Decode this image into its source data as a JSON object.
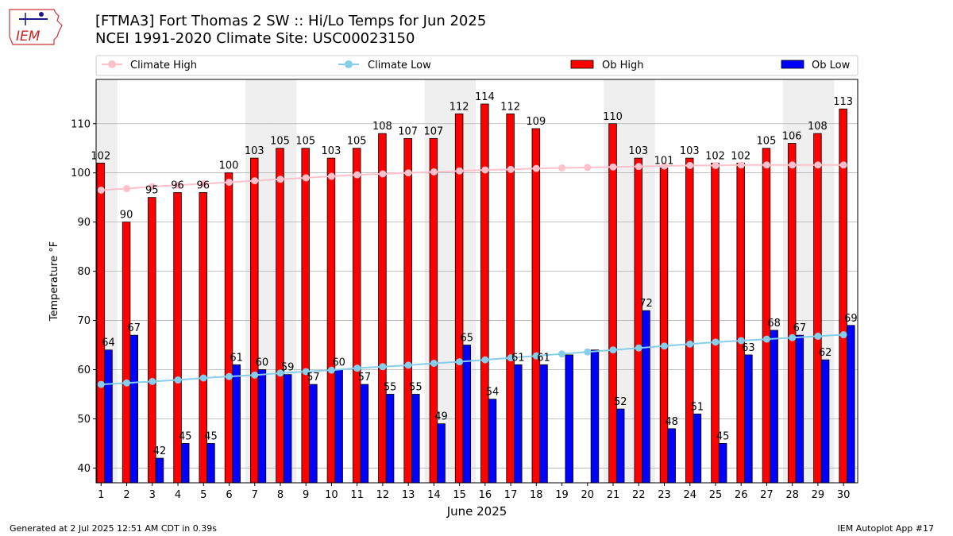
{
  "logo": {
    "text": "IEM"
  },
  "title": {
    "line1": "[FTMA3] Fort Thomas 2 SW :: Hi/Lo Temps for Jun 2025",
    "line2": "NCEI 1991-2020 Climate Site: USC00023150"
  },
  "footer": {
    "generated": "Generated at 2 Jul 2025 12:51 AM CDT in 0.39s",
    "app": "IEM Autoplot App #17"
  },
  "colors": {
    "ob_high": "#ff0000",
    "ob_low": "#0000ff",
    "climate_high": "#ffc0cb",
    "climate_low": "#87ceeb",
    "weekend_band": "#efefef",
    "grid": "#b0b0b0"
  },
  "chart_data": {
    "type": "bar",
    "xlabel": "June 2025",
    "ylabel": "Temperature °F",
    "ylim": [
      37,
      119
    ],
    "yticks": [
      40,
      50,
      60,
      70,
      80,
      90,
      100,
      110
    ],
    "grid": "horizontal",
    "legend": "top",
    "categories": [
      "1",
      "2",
      "3",
      "4",
      "5",
      "6",
      "7",
      "8",
      "9",
      "10",
      "11",
      "12",
      "13",
      "14",
      "15",
      "16",
      "17",
      "18",
      "19",
      "20",
      "21",
      "22",
      "23",
      "24",
      "25",
      "26",
      "27",
      "28",
      "29",
      "30"
    ],
    "shaded_days": [
      1,
      7,
      8,
      14,
      15,
      21,
      22,
      28,
      29
    ],
    "series": [
      {
        "name": "Ob High",
        "kind": "bar",
        "color": "#ff0000",
        "values": [
          102,
          90,
          95,
          96,
          96,
          100,
          103,
          105,
          105,
          103,
          105,
          108,
          107,
          107,
          112,
          114,
          112,
          109,
          null,
          null,
          110,
          103,
          101,
          103,
          102,
          102,
          105,
          106,
          108,
          113
        ]
      },
      {
        "name": "Ob Low",
        "kind": "bar",
        "color": "#0000ff",
        "values": [
          64,
          67,
          42,
          45,
          45,
          61,
          60,
          59,
          57,
          60,
          57,
          55,
          55,
          49,
          65,
          54,
          61,
          61,
          63,
          64,
          52,
          72,
          48,
          51,
          45,
          63,
          68,
          67,
          62,
          69
        ],
        "labels": [
          "64",
          "67",
          "42",
          "45",
          "45",
          "61",
          "60",
          "59",
          "57",
          "60",
          "57",
          "55",
          "55",
          "49",
          "65",
          "54",
          "61",
          "61",
          "",
          "",
          "52",
          "72",
          "48",
          "51",
          "45",
          "63",
          "68",
          "67",
          "62",
          "69"
        ]
      },
      {
        "name": "Climate High",
        "kind": "line",
        "color": "#ffc0cb",
        "values": [
          96.5,
          96.8,
          97.2,
          97.5,
          97.8,
          98.1,
          98.4,
          98.7,
          99.0,
          99.3,
          99.6,
          99.8,
          100.0,
          100.2,
          100.4,
          100.6,
          100.7,
          100.9,
          101.0,
          101.1,
          101.2,
          101.3,
          101.4,
          101.5,
          101.5,
          101.6,
          101.6,
          101.6,
          101.6,
          101.6
        ]
      },
      {
        "name": "Climate Low",
        "kind": "line",
        "color": "#87ceeb",
        "values": [
          57.0,
          57.3,
          57.6,
          57.9,
          58.3,
          58.6,
          58.9,
          59.3,
          59.6,
          59.9,
          60.3,
          60.6,
          60.9,
          61.3,
          61.6,
          62.0,
          62.4,
          62.8,
          63.2,
          63.6,
          64.0,
          64.4,
          64.8,
          65.2,
          65.6,
          65.9,
          66.2,
          66.5,
          66.8,
          67.1
        ]
      }
    ]
  }
}
